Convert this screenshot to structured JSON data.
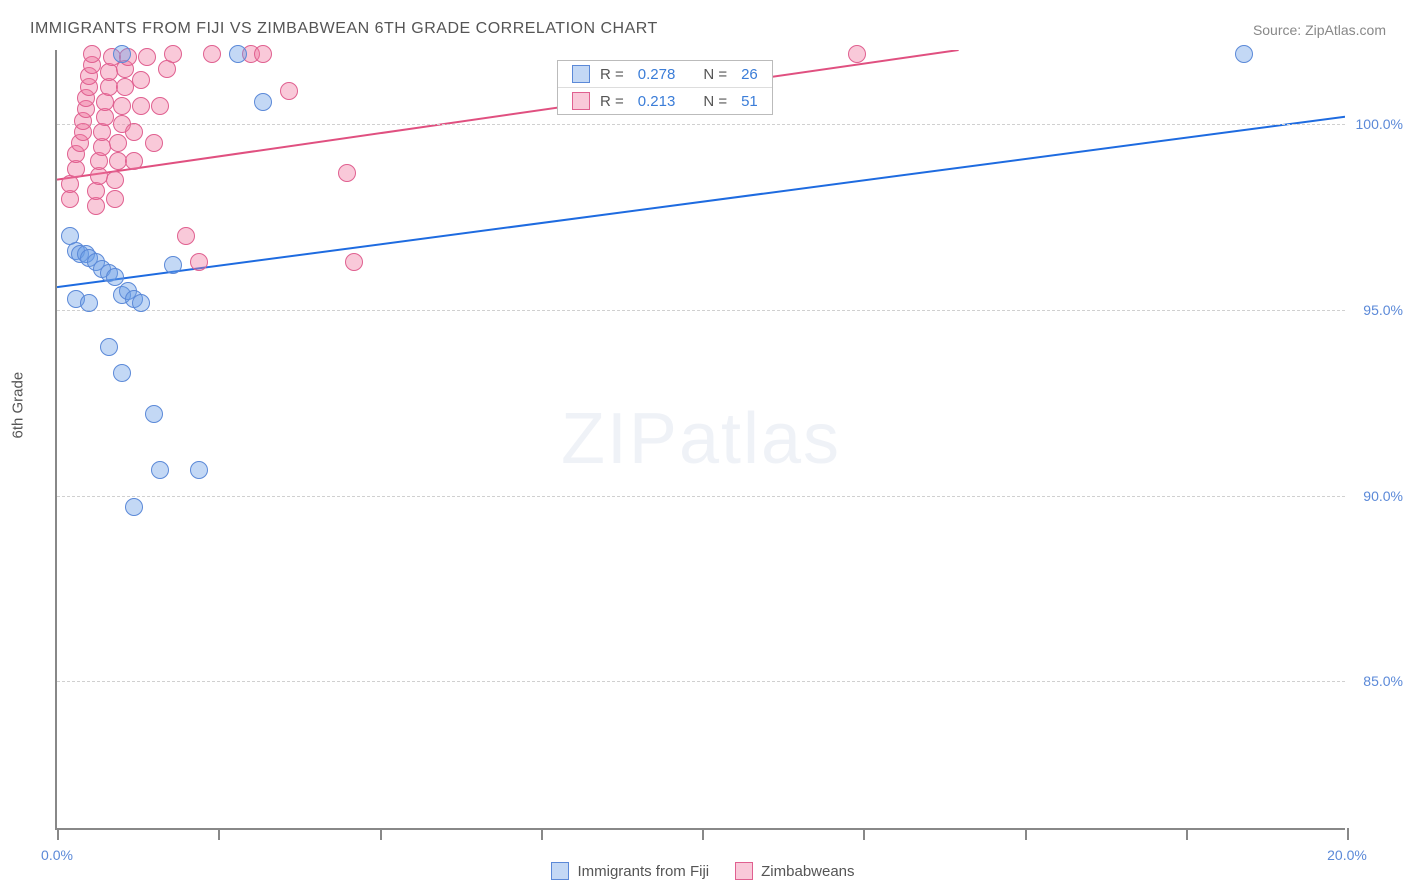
{
  "title": "IMMIGRANTS FROM FIJI VS ZIMBABWEAN 6TH GRADE CORRELATION CHART",
  "source_label": "Source: ZipAtlas.com",
  "y_axis_label": "6th Grade",
  "watermark_line1": "ZIP",
  "watermark_line2": "atlas",
  "chart": {
    "type": "scatter",
    "x_min": 0.0,
    "x_max": 20.0,
    "y_min": 81.0,
    "y_max": 102.0,
    "y_gridlines": [
      85.0,
      90.0,
      95.0,
      100.0
    ],
    "y_tick_labels": [
      "85.0%",
      "90.0%",
      "95.0%",
      "100.0%"
    ],
    "x_ticks": [
      0.0,
      2.5,
      5.0,
      7.5,
      10.0,
      12.5,
      15.0,
      17.5,
      20.0
    ],
    "x_tick_labels_shown": {
      "0.0": "0.0%",
      "20.0": "20.0%"
    },
    "plot_bg": "#ffffff",
    "grid_color": "#d0d0d0",
    "axis_color": "#888888",
    "series": {
      "fiji": {
        "label": "Immigrants from Fiji",
        "fill": "rgba(104, 158, 230, 0.40)",
        "stroke": "#5b89d8",
        "trend_color": "#1e6be0",
        "trend_width": 2,
        "marker_radius": 9,
        "r_value": "0.278",
        "n_value": "26",
        "trend": {
          "x1": 0.0,
          "y1": 95.6,
          "x2": 20.0,
          "y2": 100.2
        },
        "points": [
          [
            0.2,
            97.0
          ],
          [
            0.3,
            96.6
          ],
          [
            0.35,
            96.5
          ],
          [
            0.45,
            96.5
          ],
          [
            0.5,
            96.4
          ],
          [
            0.6,
            96.3
          ],
          [
            0.7,
            96.1
          ],
          [
            0.8,
            96.0
          ],
          [
            0.9,
            95.9
          ],
          [
            0.3,
            95.3
          ],
          [
            0.5,
            95.2
          ],
          [
            1.0,
            95.4
          ],
          [
            1.1,
            95.5
          ],
          [
            1.2,
            95.3
          ],
          [
            1.3,
            95.2
          ],
          [
            0.8,
            94.0
          ],
          [
            1.0,
            93.3
          ],
          [
            1.5,
            92.2
          ],
          [
            1.2,
            89.7
          ],
          [
            1.6,
            90.7
          ],
          [
            2.2,
            90.7
          ],
          [
            3.2,
            100.6
          ],
          [
            1.8,
            96.2
          ],
          [
            2.8,
            101.9
          ],
          [
            1.0,
            101.9
          ],
          [
            18.4,
            101.9
          ]
        ]
      },
      "zimbabwe": {
        "label": "Zimbabweans",
        "fill": "rgba(240, 120, 160, 0.40)",
        "stroke": "#e06090",
        "trend_color": "#e05080",
        "trend_width": 2,
        "marker_radius": 9,
        "r_value": "0.213",
        "n_value": "51",
        "trend": {
          "x1": 0.0,
          "y1": 98.5,
          "x2": 14.0,
          "y2": 102.0
        },
        "points": [
          [
            0.2,
            98.0
          ],
          [
            0.2,
            98.4
          ],
          [
            0.3,
            98.8
          ],
          [
            0.3,
            99.2
          ],
          [
            0.35,
            99.5
          ],
          [
            0.4,
            99.8
          ],
          [
            0.4,
            100.1
          ],
          [
            0.45,
            100.4
          ],
          [
            0.45,
            100.7
          ],
          [
            0.5,
            101.0
          ],
          [
            0.5,
            101.3
          ],
          [
            0.55,
            101.6
          ],
          [
            0.55,
            101.9
          ],
          [
            0.6,
            97.8
          ],
          [
            0.6,
            98.2
          ],
          [
            0.65,
            98.6
          ],
          [
            0.65,
            99.0
          ],
          [
            0.7,
            99.4
          ],
          [
            0.7,
            99.8
          ],
          [
            0.75,
            100.2
          ],
          [
            0.75,
            100.6
          ],
          [
            0.8,
            101.0
          ],
          [
            0.8,
            101.4
          ],
          [
            0.85,
            101.8
          ],
          [
            0.9,
            98.0
          ],
          [
            0.9,
            98.5
          ],
          [
            0.95,
            99.0
          ],
          [
            0.95,
            99.5
          ],
          [
            1.0,
            100.0
          ],
          [
            1.0,
            100.5
          ],
          [
            1.05,
            101.0
          ],
          [
            1.05,
            101.5
          ],
          [
            1.1,
            101.8
          ],
          [
            1.2,
            99.0
          ],
          [
            1.2,
            99.8
          ],
          [
            1.3,
            100.5
          ],
          [
            1.3,
            101.2
          ],
          [
            1.4,
            101.8
          ],
          [
            1.5,
            99.5
          ],
          [
            1.6,
            100.5
          ],
          [
            1.7,
            101.5
          ],
          [
            1.8,
            101.9
          ],
          [
            2.0,
            97.0
          ],
          [
            2.2,
            96.3
          ],
          [
            2.4,
            101.9
          ],
          [
            3.0,
            101.9
          ],
          [
            3.2,
            101.9
          ],
          [
            3.6,
            100.9
          ],
          [
            4.5,
            98.7
          ],
          [
            4.6,
            96.3
          ],
          [
            12.4,
            101.9
          ]
        ]
      }
    }
  },
  "legend_top": {
    "r_label": "R =",
    "n_label": "N ="
  },
  "legend_bottom": [
    {
      "series": "fiji"
    },
    {
      "series": "zimbabwe"
    }
  ]
}
